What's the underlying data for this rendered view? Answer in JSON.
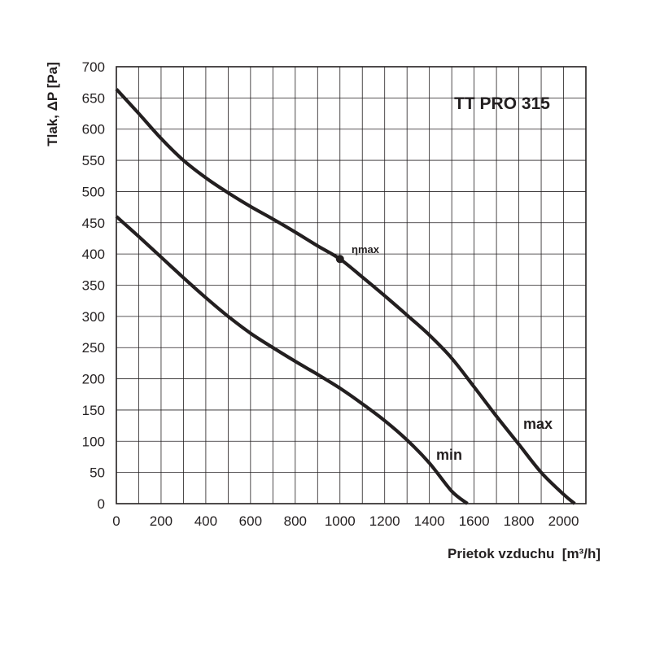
{
  "chart_data": {
    "type": "line",
    "title": "TT PRO 315",
    "xlabel": "Prietok vzduchu  [m³/h]",
    "ylabel": "Tlak, ΔP [Pa]",
    "xlim": [
      0,
      2100
    ],
    "ylim": [
      0,
      700
    ],
    "x_ticks": [
      0,
      200,
      400,
      600,
      800,
      1000,
      1200,
      1400,
      1600,
      1800,
      2000
    ],
    "y_ticks": [
      0,
      50,
      100,
      150,
      200,
      250,
      300,
      350,
      400,
      450,
      500,
      550,
      600,
      650,
      700
    ],
    "grid": true,
    "series": [
      {
        "name": "max",
        "x": [
          0,
          100,
          200,
          300,
          400,
          500,
          600,
          700,
          800,
          900,
          1000,
          1100,
          1200,
          1300,
          1400,
          1500,
          1600,
          1700,
          1800,
          1900,
          2000,
          2050
        ],
        "y": [
          664,
          625,
          585,
          550,
          522,
          498,
          476,
          456,
          435,
          413,
          392,
          363,
          333,
          302,
          270,
          233,
          187,
          140,
          95,
          50,
          15,
          0
        ]
      },
      {
        "name": "min",
        "x": [
          0,
          100,
          200,
          300,
          400,
          500,
          600,
          700,
          800,
          900,
          1000,
          1100,
          1200,
          1300,
          1400,
          1500,
          1570
        ],
        "y": [
          460,
          428,
          395,
          362,
          330,
          300,
          273,
          250,
          228,
          207,
          185,
          160,
          133,
          102,
          65,
          20,
          0
        ]
      }
    ],
    "annotations": [
      {
        "text": "ηmax",
        "x": 1000,
        "y": 392
      }
    ]
  }
}
